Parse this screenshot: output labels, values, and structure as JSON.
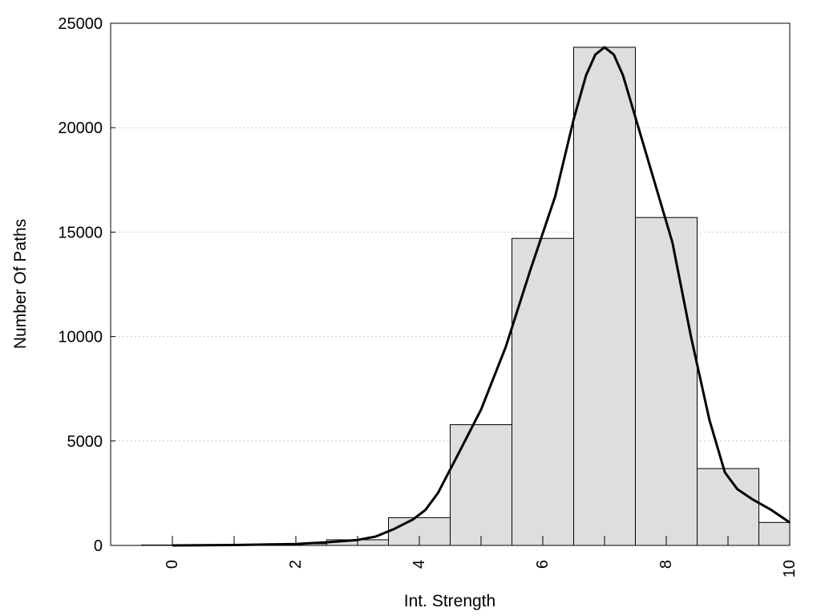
{
  "chart_data": {
    "type": "bar",
    "title": "",
    "xlabel": "Int. Strength",
    "ylabel": "Number Of Paths",
    "xlim": [
      -1,
      10
    ],
    "ylim": [
      0,
      25000
    ],
    "x_ticks": [
      0,
      2,
      4,
      6,
      8,
      10
    ],
    "y_ticks": [
      0,
      5000,
      10000,
      15000,
      20000,
      25000
    ],
    "grid": "y-dotted",
    "legend": "none",
    "bin_width": 1,
    "bins": [
      {
        "x": 0,
        "value": 20
      },
      {
        "x": 1,
        "value": 40
      },
      {
        "x": 2,
        "value": 80
      },
      {
        "x": 3,
        "value": 270
      },
      {
        "x": 4,
        "value": 1330
      },
      {
        "x": 5,
        "value": 5780
      },
      {
        "x": 6,
        "value": 14700
      },
      {
        "x": 7,
        "value": 23850
      },
      {
        "x": 8,
        "value": 15700
      },
      {
        "x": 9,
        "value": 3680
      },
      {
        "x": 10,
        "value": 1100
      }
    ],
    "density_curve": {
      "x": [
        0,
        1,
        2,
        2.5,
        3,
        3.3,
        3.6,
        3.9,
        4.1,
        4.3,
        4.6,
        5.0,
        5.4,
        5.8,
        6.2,
        6.5,
        6.7,
        6.85,
        7.0,
        7.15,
        7.3,
        7.5,
        7.8,
        8.1,
        8.4,
        8.7,
        8.95,
        9.15,
        9.4,
        9.7,
        10.0
      ],
      "y": [
        0,
        20,
        70,
        150,
        260,
        430,
        800,
        1250,
        1700,
        2500,
        4200,
        6500,
        9500,
        13200,
        16700,
        20400,
        22500,
        23500,
        23850,
        23500,
        22500,
        20500,
        17500,
        14500,
        10000,
        6000,
        3500,
        2700,
        2200,
        1700,
        1100
      ]
    },
    "colors": {
      "bar_fill": "#dedede",
      "bar_stroke": "#000000",
      "curve": "#000000",
      "grid": "#cccccc"
    }
  }
}
